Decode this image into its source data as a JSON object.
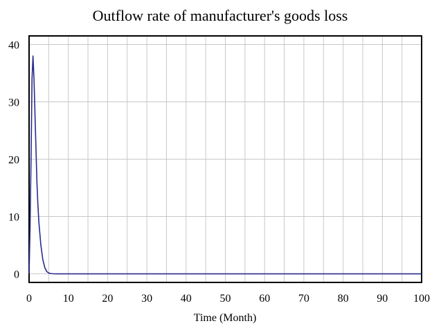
{
  "chart_data": {
    "type": "line",
    "title": "Outflow rate of manufacturer's goods loss",
    "xlabel": "Time (Month)",
    "ylabel": "",
    "xlim": [
      0,
      100
    ],
    "ylim": [
      -1.5,
      41.5
    ],
    "xticks": [
      "0",
      "10",
      "20",
      "30",
      "40",
      "50",
      "60",
      "70",
      "80",
      "90",
      "100"
    ],
    "yticks": [
      "0",
      "10",
      "20",
      "30",
      "40"
    ],
    "ytick_values": [
      0,
      10,
      20,
      30,
      40
    ],
    "grid": true,
    "colors": {
      "series": "#2a2a8c",
      "grid": "#c8c8c8",
      "frame": "#000000"
    },
    "series": [
      {
        "x": [
          0,
          0.25,
          0.5,
          0.75,
          1,
          1.25,
          1.5,
          1.75,
          2,
          2.25,
          2.5,
          3,
          3.5,
          4,
          4.5,
          5,
          5.5,
          6,
          7,
          8,
          10,
          20,
          40,
          60,
          80,
          100
        ],
        "values": [
          0,
          8,
          20,
          34,
          38,
          34,
          28,
          22,
          16,
          12,
          9,
          5,
          2.5,
          1.1,
          0.4,
          0.15,
          0.05,
          0.02,
          0,
          0,
          0,
          0,
          0,
          0,
          0,
          0
        ]
      }
    ]
  }
}
